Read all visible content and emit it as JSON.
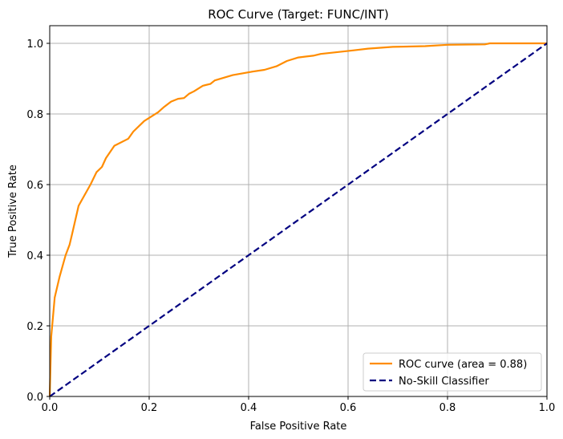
{
  "chart_data": {
    "type": "line",
    "title": "ROC Curve (Target: FUNC/INT)",
    "xlabel": "False Positive Rate",
    "ylabel": "True Positive Rate",
    "xlim": [
      0,
      1
    ],
    "ylim": [
      0,
      1.05
    ],
    "grid": true,
    "legend_position": "bottom-right",
    "xticks": [
      "0.0",
      "0.2",
      "0.4",
      "0.6",
      "0.8",
      "1.0"
    ],
    "yticks": [
      "0.0",
      "0.2",
      "0.4",
      "0.6",
      "0.8",
      "1.0"
    ],
    "series": [
      {
        "name": "ROC curve (area = 0.88)",
        "color": "#ff8c00",
        "style": "solid",
        "x": [
          0,
          0.003,
          0.01,
          0.02,
          0.032,
          0.04,
          0.045,
          0.058,
          0.082,
          0.094,
          0.105,
          0.113,
          0.13,
          0.158,
          0.168,
          0.19,
          0.218,
          0.23,
          0.244,
          0.258,
          0.27,
          0.28,
          0.29,
          0.308,
          0.323,
          0.332,
          0.368,
          0.408,
          0.432,
          0.456,
          0.477,
          0.5,
          0.53,
          0.545,
          0.61,
          0.64,
          0.69,
          0.755,
          0.8,
          0.875,
          0.885,
          1.0
        ],
        "y": [
          0,
          0.17,
          0.28,
          0.34,
          0.4,
          0.43,
          0.46,
          0.54,
          0.6,
          0.635,
          0.65,
          0.675,
          0.71,
          0.73,
          0.75,
          0.78,
          0.805,
          0.82,
          0.835,
          0.843,
          0.845,
          0.857,
          0.864,
          0.88,
          0.885,
          0.895,
          0.91,
          0.92,
          0.925,
          0.935,
          0.95,
          0.96,
          0.965,
          0.97,
          0.98,
          0.985,
          0.99,
          0.992,
          0.996,
          0.997,
          1.0,
          1.0
        ]
      },
      {
        "name": "No-Skill Classifier",
        "color": "#000080",
        "style": "dashed",
        "x": [
          0,
          1
        ],
        "y": [
          0,
          1
        ]
      }
    ]
  }
}
